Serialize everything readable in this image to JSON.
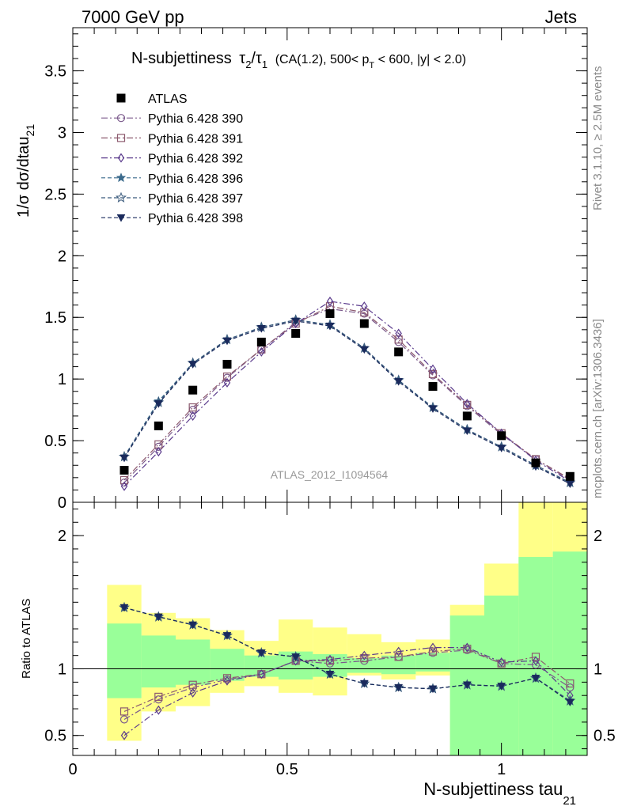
{
  "header": {
    "left": "7000 GeV pp",
    "right": "Jets"
  },
  "side_labels": {
    "rivet": "Rivet 3.1.10, ≥ 2.5M events",
    "mcplots": "mcplots.cern.ch [arXiv:1306.3436]"
  },
  "watermark": "ATLAS_2012_I1094564",
  "chart_data": [
    {
      "type": "line",
      "panel": "main",
      "title": {
        "main": "N-subjettiness",
        "tau2": "τ",
        "sub2": "2",
        "slash": "/",
        "tau1": "τ",
        "sub1": "1",
        "rest": "(CA(1.2), 500< p",
        "subT": "T",
        "rest2": " < 600, |y| < 2.0)"
      },
      "ylabel": {
        "main": "1/σ dσ/dtau",
        "sub": "21"
      },
      "xlim": [
        0,
        1.2
      ],
      "ylim": [
        0,
        3.85
      ],
      "yticks": [
        0,
        0.5,
        1,
        1.5,
        2,
        2.5,
        3,
        3.5
      ],
      "yticklabels": [
        "0",
        "0.5",
        "1",
        "1.5",
        "2",
        "2.5",
        "3",
        "3.5"
      ],
      "x": [
        0.12,
        0.2,
        0.28,
        0.36,
        0.44,
        0.52,
        0.6,
        0.68,
        0.76,
        0.84,
        0.92,
        1.0,
        1.08,
        1.16
      ],
      "data": {
        "name": "ATLAS",
        "values": [
          0.26,
          0.62,
          0.91,
          1.12,
          1.3,
          1.37,
          1.53,
          1.45,
          1.22,
          0.94,
          0.7,
          0.54,
          0.32,
          0.21
        ]
      },
      "series": [
        {
          "name": "Pythia 6.428 390",
          "color": "#7b5a8c",
          "marker": "circle-open",
          "dash": "8,3,2,3",
          "values": [
            0.16,
            0.45,
            0.75,
            1.01,
            1.24,
            1.46,
            1.57,
            1.53,
            1.3,
            1.03,
            0.78,
            0.55,
            0.35,
            0.18
          ]
        },
        {
          "name": "Pythia 6.428 391",
          "color": "#8c5a6e",
          "marker": "square-open",
          "dash": "8,3,2,3",
          "values": [
            0.18,
            0.47,
            0.77,
            1.02,
            1.24,
            1.45,
            1.59,
            1.54,
            1.32,
            1.04,
            0.79,
            0.56,
            0.35,
            0.19
          ]
        },
        {
          "name": "Pythia 6.428 392",
          "color": "#5a3a8c",
          "marker": "diamond-open",
          "dash": "8,3,2,3",
          "values": [
            0.13,
            0.41,
            0.7,
            0.97,
            1.22,
            1.45,
            1.63,
            1.59,
            1.37,
            1.08,
            0.8,
            0.56,
            0.34,
            0.17
          ]
        },
        {
          "name": "Pythia 6.428 396",
          "color": "#3a6a8c",
          "marker": "star",
          "dash": "5,3",
          "values": [
            0.37,
            0.82,
            1.13,
            1.32,
            1.42,
            1.48,
            1.44,
            1.25,
            0.99,
            0.77,
            0.59,
            0.45,
            0.3,
            0.16
          ]
        },
        {
          "name": "Pythia 6.428 397",
          "color": "#3a5a7c",
          "marker": "star-open",
          "dash": "5,3",
          "values": [
            0.37,
            0.81,
            1.13,
            1.32,
            1.42,
            1.48,
            1.44,
            1.25,
            0.99,
            0.77,
            0.59,
            0.45,
            0.3,
            0.16
          ]
        },
        {
          "name": "Pythia 6.428 398",
          "color": "#1a2a5c",
          "marker": "triangle-down",
          "dash": "5,3",
          "values": [
            0.36,
            0.8,
            1.12,
            1.31,
            1.41,
            1.47,
            1.43,
            1.24,
            0.98,
            0.76,
            0.58,
            0.44,
            0.29,
            0.15
          ]
        }
      ]
    },
    {
      "type": "line",
      "panel": "ratio",
      "ylabel": "Ratio to ATLAS",
      "xlabel": {
        "main": "N-subjettiness tau",
        "sub": "21"
      },
      "xlim": [
        0,
        1.2
      ],
      "ylim": [
        0.35,
        2.25
      ],
      "xticks": [
        0,
        0.5,
        1
      ],
      "xticklabels": [
        "0",
        "0.5",
        "1"
      ],
      "yticks": [
        0.5,
        1,
        2
      ],
      "yticklabels": [
        "0.5",
        "1",
        "2"
      ],
      "bins": [
        [
          0.08,
          0.16
        ],
        [
          0.16,
          0.24
        ],
        [
          0.24,
          0.32
        ],
        [
          0.32,
          0.4
        ],
        [
          0.4,
          0.48
        ],
        [
          0.48,
          0.56
        ],
        [
          0.56,
          0.64
        ],
        [
          0.64,
          0.72
        ],
        [
          0.72,
          0.8
        ],
        [
          0.8,
          0.88
        ],
        [
          0.88,
          0.96
        ],
        [
          0.96,
          1.04
        ],
        [
          1.04,
          1.12
        ],
        [
          1.12,
          1.2
        ]
      ],
      "band_yellow": [
        [
          0.46,
          1.63
        ],
        [
          0.68,
          1.42
        ],
        [
          0.72,
          1.38
        ],
        [
          0.82,
          1.29
        ],
        [
          0.87,
          1.21
        ],
        [
          0.82,
          1.37
        ],
        [
          0.8,
          1.31
        ],
        [
          0.95,
          1.26
        ],
        [
          0.92,
          1.2
        ],
        [
          0.95,
          1.22
        ],
        [
          0.35,
          1.48
        ],
        [
          0.35,
          1.79
        ],
        [
          0.35,
          2.25
        ],
        [
          0.35,
          2.25
        ]
      ],
      "band_green": [
        [
          0.78,
          1.34
        ],
        [
          0.86,
          1.25
        ],
        [
          0.88,
          1.22
        ],
        [
          0.91,
          1.15
        ],
        [
          0.94,
          1.1
        ],
        [
          0.92,
          1.13
        ],
        [
          0.94,
          1.11
        ],
        [
          0.97,
          1.08
        ],
        [
          0.96,
          1.1
        ],
        [
          0.98,
          1.12
        ],
        [
          0.35,
          1.4
        ],
        [
          0.35,
          1.55
        ],
        [
          0.35,
          1.84
        ],
        [
          0.35,
          1.88
        ]
      ],
      "colors": {
        "yellow": "#ffff88",
        "green": "#99ff99"
      },
      "series": [
        {
          "name": "Pythia 6.428 390",
          "values": [
            0.62,
            0.77,
            0.86,
            0.92,
            0.96,
            1.06,
            1.04,
            1.06,
            1.09,
            1.12,
            1.14,
            1.04,
            1.03,
            0.86
          ]
        },
        {
          "name": "Pythia 6.428 391",
          "values": [
            0.68,
            0.79,
            0.88,
            0.93,
            0.96,
            1.06,
            1.06,
            1.08,
            1.09,
            1.13,
            1.15,
            1.04,
            1.09,
            0.89
          ]
        },
        {
          "name": "Pythia 6.428 392",
          "values": [
            0.5,
            0.69,
            0.82,
            0.91,
            0.96,
            1.06,
            1.07,
            1.1,
            1.13,
            1.16,
            1.16,
            1.05,
            1.06,
            0.8
          ]
        },
        {
          "name": "Pythia 6.428 396",
          "values": [
            1.46,
            1.39,
            1.33,
            1.25,
            1.12,
            1.09,
            0.96,
            0.89,
            0.86,
            0.85,
            0.88,
            0.87,
            0.93,
            0.76
          ]
        },
        {
          "name": "Pythia 6.428 397",
          "values": [
            1.46,
            1.39,
            1.33,
            1.25,
            1.12,
            1.09,
            0.96,
            0.89,
            0.86,
            0.85,
            0.88,
            0.87,
            0.93,
            0.76
          ]
        },
        {
          "name": "Pythia 6.428 398",
          "values": [
            1.46,
            1.39,
            1.33,
            1.25,
            1.12,
            1.09,
            0.96,
            0.89,
            0.86,
            0.85,
            0.88,
            0.87,
            0.93,
            0.75
          ]
        }
      ]
    }
  ]
}
